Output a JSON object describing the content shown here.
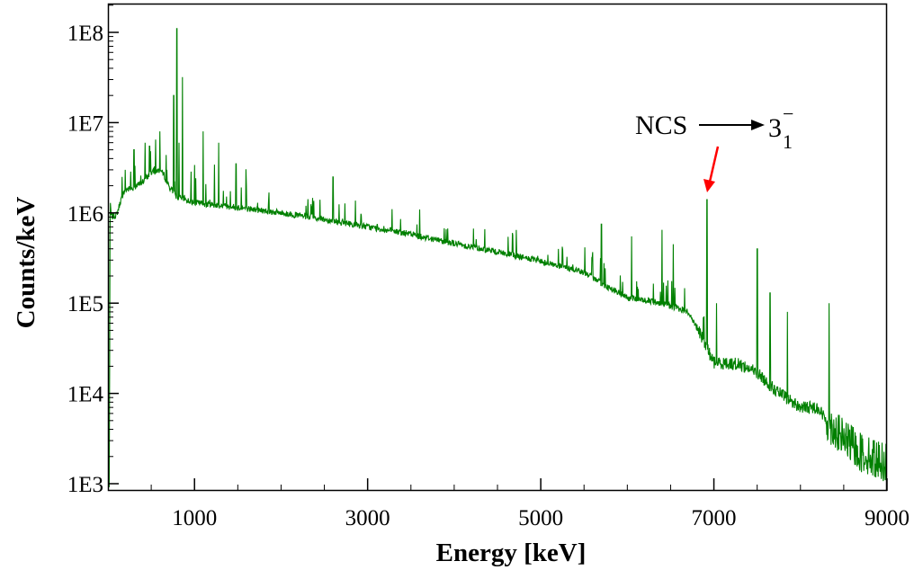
{
  "chart_data": {
    "type": "line",
    "title": "",
    "xlabel": "Energy [keV]",
    "ylabel": "Counts/keV",
    "xlim": [
      0,
      9000
    ],
    "ylim": [
      800,
      110000000
    ],
    "yscale": "log",
    "grid": false,
    "legend": "none",
    "x_ticks": [
      1000,
      3000,
      5000,
      7000,
      9000
    ],
    "x_tick_labels": [
      "1000",
      "3000",
      "5000",
      "7000",
      "9000"
    ],
    "y_ticks": [
      1000,
      10000,
      100000,
      1000000,
      10000000,
      100000000
    ],
    "y_tick_labels": [
      "1E3",
      "1E4",
      "1E5",
      "1E6",
      "1E7",
      "1E8"
    ],
    "series": [
      {
        "color": "#008000",
        "continuum": [
          [
            15,
            900
          ],
          [
            25,
            1300000
          ],
          [
            40,
            900000
          ],
          [
            100,
            950000
          ],
          [
            150,
            1400000
          ],
          [
            200,
            1800000
          ],
          [
            300,
            1900000
          ],
          [
            400,
            2200000
          ],
          [
            500,
            2800000
          ],
          [
            600,
            3000000
          ],
          [
            650,
            2600000
          ],
          [
            700,
            2000000
          ],
          [
            800,
            1500000
          ],
          [
            1000,
            1300000
          ],
          [
            1500,
            1150000
          ],
          [
            2000,
            1000000
          ],
          [
            2500,
            850000
          ],
          [
            3000,
            700000
          ],
          [
            3500,
            580000
          ],
          [
            4000,
            460000
          ],
          [
            4500,
            370000
          ],
          [
            5000,
            290000
          ],
          [
            5500,
            220000
          ],
          [
            5700,
            165000
          ],
          [
            6000,
            115000
          ],
          [
            6400,
            100000
          ],
          [
            6700,
            80000
          ],
          [
            6800,
            55000
          ],
          [
            6900,
            35000
          ],
          [
            7000,
            22000
          ],
          [
            7300,
            21000
          ],
          [
            7500,
            17000
          ],
          [
            7700,
            11000
          ],
          [
            8000,
            7000
          ],
          [
            8200,
            7000
          ],
          [
            8300,
            5000
          ],
          [
            8450,
            3500
          ],
          [
            8700,
            2200
          ],
          [
            9000,
            1700
          ]
        ],
        "peaks": [
          [
            200,
            3000000
          ],
          [
            300,
            5000000
          ],
          [
            430,
            6000000
          ],
          [
            480,
            5500000
          ],
          [
            550,
            6500000
          ],
          [
            600,
            8000000
          ],
          [
            680,
            3000000
          ],
          [
            760,
            20000000
          ],
          [
            795,
            110000000
          ],
          [
            820,
            6000000
          ],
          [
            860,
            32000000
          ],
          [
            1100,
            8000000
          ],
          [
            1280,
            6000000
          ],
          [
            1480,
            3500000
          ],
          [
            1600,
            2000000
          ],
          [
            2600,
            2500000
          ],
          [
            5700,
            750000
          ],
          [
            6050,
            550000
          ],
          [
            6400,
            650000
          ],
          [
            6530,
            450000
          ],
          [
            6920,
            1400000
          ],
          [
            7030,
            100000
          ],
          [
            7500,
            400000
          ],
          [
            7650,
            130000
          ],
          [
            7850,
            80000
          ],
          [
            8330,
            100000
          ]
        ]
      }
    ],
    "annotations": [
      {
        "text": "NCS",
        "arrow_to": "3",
        "superscript": "−",
        "subscript": "1",
        "points_to": [
          6920,
          1400000
        ],
        "pointer_color": "#ff0000"
      }
    ]
  }
}
